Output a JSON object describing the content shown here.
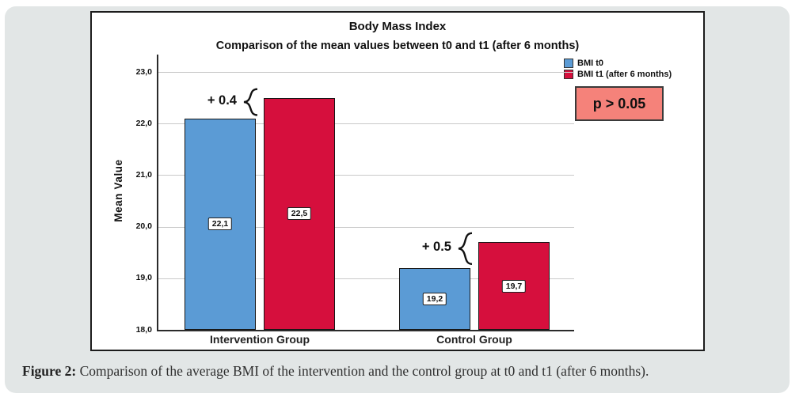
{
  "figure": {
    "caption_label": "Figure 2:",
    "caption_text": " Comparison of the average BMI of the intervention and the control group at t0 and t1 (after 6 months)."
  },
  "p_box": {
    "label": "p > 0.05",
    "fill": "#f5827a"
  },
  "colors": {
    "panel_bg": "#e2e6e6",
    "bar_blue": "#5b9bd5",
    "bar_red": "#d60f3d",
    "p_fill": "#f5827a",
    "gridline": "#c9c9c9"
  },
  "chart_data": {
    "type": "bar",
    "title": "Body Mass Index",
    "subtitle": "Comparison of the mean values between t0 and t1 (after 6 months)",
    "ylabel": "Mean Value",
    "xlabel": "",
    "categories": [
      "Intervention Group",
      "Control Group"
    ],
    "series": [
      {
        "name": "BMI t0",
        "color": "#5b9bd5",
        "values": [
          22.1,
          19.2
        ]
      },
      {
        "name": "BMI t1 (after 6 months)",
        "color": "#d60f3d",
        "values": [
          22.5,
          19.7
        ]
      }
    ],
    "bar_value_labels": [
      [
        "22,1",
        "19,2"
      ],
      [
        "22,5",
        "19,7"
      ]
    ],
    "diff_annotations": [
      {
        "text": "+ 0.4",
        "group_index": 0
      },
      {
        "text": "+ 0.5",
        "group_index": 1
      }
    ],
    "ytick_values": [
      18,
      19,
      20,
      21,
      22,
      23
    ],
    "ytick_labels": [
      "18,0",
      "19,0",
      "20,0",
      "21,0",
      "22,0",
      "23,0"
    ],
    "ylim": [
      18,
      23.35
    ],
    "grid": "horizontal",
    "legend_position": "top-right",
    "decimal_style": "comma"
  }
}
